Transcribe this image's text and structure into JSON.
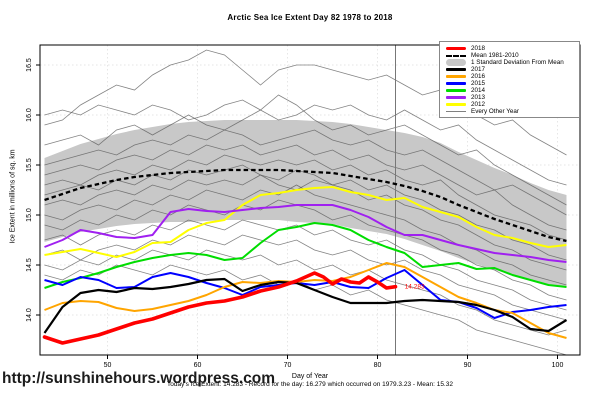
{
  "page": {
    "site_url": "http://sunshinehours.wordpress.com",
    "footer_caption": "Today's Ice Extent: 14.283  - Record for the day: 16.279 which occurred on 1979.3.23  - Mean: 15.32"
  },
  "legend": {
    "items": [
      {
        "label": "2018",
        "swatch": "thick-line",
        "color": "#FF0000"
      },
      {
        "label": "Mean 1981-2010",
        "swatch": "dashed-line",
        "color": "#000000"
      },
      {
        "label": "1 Standard Deviation From Mean",
        "swatch": "band",
        "color": "#C8C8C8"
      },
      {
        "label": "2017",
        "swatch": "line",
        "color": "#000000"
      },
      {
        "label": "2016",
        "swatch": "line",
        "color": "#FFA500"
      },
      {
        "label": "2015",
        "swatch": "line",
        "color": "#0000FF"
      },
      {
        "label": "2014",
        "swatch": "line",
        "color": "#00DD00"
      },
      {
        "label": "2013",
        "swatch": "line",
        "color": "#A020F0"
      },
      {
        "label": "2012",
        "swatch": "line",
        "color": "#FFFF00"
      },
      {
        "label": "Every Other Year",
        "swatch": "thin-line",
        "color": "#808080"
      }
    ]
  },
  "chart_data": {
    "type": "line",
    "title": "Arctic Sea Ice Extent Day 82 1978 to 2018",
    "xlabel": "Day of Year",
    "ylabel": "Ice Extent in millions of sq. km",
    "xlim": [
      42.5,
      102.5
    ],
    "ylim": [
      13.6,
      16.7
    ],
    "x_ticks": [
      50,
      60,
      70,
      80,
      90,
      100
    ],
    "y_ticks": [
      14.0,
      14.5,
      15.0,
      15.5,
      16.0,
      16.5
    ],
    "grid": true,
    "legend_position": "top-right",
    "vline_x": 82,
    "annotation": {
      "text": "14.283",
      "x": 82.8,
      "y": 14.283,
      "color": "#FF0000"
    },
    "days": [
      43,
      45,
      47,
      49,
      51,
      53,
      55,
      57,
      59,
      61,
      63,
      65,
      67,
      69,
      71,
      73,
      75,
      77,
      79,
      81,
      83,
      85,
      87,
      89,
      91,
      93,
      95,
      97,
      99,
      101
    ],
    "band": {
      "label": "1 Standard Deviation From Mean",
      "color": "#C8C8C8",
      "upper": [
        15.57,
        15.64,
        15.71,
        15.76,
        15.81,
        15.85,
        15.88,
        15.91,
        15.93,
        15.94,
        15.95,
        15.95,
        15.95,
        15.95,
        15.95,
        15.94,
        15.93,
        15.91,
        15.88,
        15.85,
        15.82,
        15.78,
        15.72,
        15.63,
        15.55,
        15.47,
        15.4,
        15.32,
        15.25,
        15.2
      ],
      "lower": [
        14.73,
        14.78,
        14.83,
        14.86,
        14.89,
        14.91,
        14.92,
        14.93,
        14.93,
        14.94,
        14.95,
        14.95,
        14.95,
        14.95,
        14.93,
        14.92,
        14.91,
        14.87,
        14.84,
        14.81,
        14.76,
        14.7,
        14.64,
        14.57,
        14.51,
        14.45,
        14.4,
        14.36,
        14.31,
        14.28
      ]
    },
    "mean_line": {
      "label": "Mean 1981-2010",
      "color": "#000000",
      "dashed": true,
      "values": [
        15.15,
        15.21,
        15.27,
        15.31,
        15.35,
        15.38,
        15.4,
        15.42,
        15.43,
        15.44,
        15.45,
        15.45,
        15.45,
        15.45,
        15.44,
        15.43,
        15.42,
        15.39,
        15.36,
        15.33,
        15.29,
        15.24,
        15.18,
        15.1,
        15.03,
        14.96,
        14.9,
        14.84,
        14.78,
        14.74
      ]
    },
    "series": [
      {
        "name": "2012",
        "color": "#FFFF00",
        "width": 2,
        "values": [
          14.6,
          14.63,
          14.66,
          14.62,
          14.58,
          14.63,
          14.72,
          14.73,
          14.85,
          14.92,
          14.95,
          15.1,
          15.2,
          15.22,
          15.25,
          15.27,
          15.28,
          15.23,
          15.2,
          15.15,
          15.17,
          15.08,
          15.03,
          14.98,
          14.88,
          14.8,
          14.77,
          14.72,
          14.68,
          14.7
        ]
      },
      {
        "name": "2013",
        "color": "#A020F0",
        "width": 2,
        "values": [
          14.68,
          14.75,
          14.85,
          14.82,
          14.78,
          14.77,
          14.8,
          15.03,
          15.06,
          15.04,
          15.03,
          15.05,
          15.07,
          15.08,
          15.1,
          15.1,
          15.1,
          15.05,
          14.98,
          14.88,
          14.8,
          14.8,
          14.75,
          14.7,
          14.66,
          14.62,
          14.6,
          14.58,
          14.55,
          14.53
        ]
      },
      {
        "name": "2014",
        "color": "#00DD00",
        "width": 2,
        "values": [
          14.27,
          14.33,
          14.37,
          14.42,
          14.48,
          14.53,
          14.57,
          14.6,
          14.62,
          14.6,
          14.55,
          14.57,
          14.72,
          14.85,
          14.88,
          14.92,
          14.9,
          14.85,
          14.75,
          14.68,
          14.62,
          14.48,
          14.5,
          14.52,
          14.46,
          14.47,
          14.4,
          14.35,
          14.3,
          14.28
        ]
      },
      {
        "name": "2015",
        "color": "#0000FF",
        "width": 2,
        "values": [
          14.35,
          14.3,
          14.38,
          14.35,
          14.27,
          14.28,
          14.38,
          14.42,
          14.38,
          14.32,
          14.27,
          14.2,
          14.28,
          14.3,
          14.32,
          14.3,
          14.33,
          14.28,
          14.27,
          14.37,
          14.45,
          14.3,
          14.15,
          14.13,
          14.07,
          13.97,
          14.03,
          14.05,
          14.08,
          14.1
        ]
      },
      {
        "name": "2016",
        "color": "#FFA500",
        "width": 2,
        "values": [
          14.05,
          14.12,
          14.14,
          14.13,
          14.07,
          14.04,
          14.06,
          14.1,
          14.14,
          14.2,
          14.28,
          14.33,
          14.32,
          14.34,
          14.33,
          14.35,
          14.34,
          14.38,
          14.45,
          14.52,
          14.48,
          14.38,
          14.28,
          14.18,
          14.12,
          14.05,
          14.02,
          13.92,
          13.82,
          13.77
        ]
      },
      {
        "name": "2017",
        "color": "#000000",
        "width": 2.2,
        "values": [
          13.82,
          14.08,
          14.22,
          14.25,
          14.23,
          14.27,
          14.26,
          14.28,
          14.31,
          14.35,
          14.36,
          14.24,
          14.3,
          14.33,
          14.32,
          14.25,
          14.18,
          14.12,
          14.12,
          14.12,
          14.14,
          14.15,
          14.14,
          14.13,
          14.1,
          14.05,
          13.98,
          13.86,
          13.84,
          13.95
        ]
      }
    ],
    "series_2018": {
      "name": "2018",
      "color": "#FF0000",
      "width": 3.6,
      "days": [
        43,
        45,
        47,
        49,
        51,
        53,
        55,
        57,
        59,
        61,
        63,
        65,
        67,
        69,
        71,
        73,
        74,
        75,
        76,
        77,
        78,
        79,
        80,
        81,
        82
      ],
      "values": [
        13.78,
        13.72,
        13.76,
        13.8,
        13.86,
        13.92,
        13.96,
        14.02,
        14.08,
        14.12,
        14.14,
        14.18,
        14.24,
        14.28,
        14.34,
        14.42,
        14.38,
        14.31,
        14.36,
        14.33,
        14.32,
        14.38,
        14.33,
        14.27,
        14.283
      ]
    },
    "background_years": {
      "label": "Every Other Year",
      "color": "#5a5a5a",
      "series": [
        [
          15.9,
          15.95,
          16.1,
          16.2,
          16.3,
          16.25,
          16.4,
          16.5,
          16.55,
          16.65,
          16.6,
          16.45,
          16.3,
          16.45,
          16.5,
          16.5,
          16.45,
          16.4,
          16.35,
          16.4,
          16.3,
          16.2,
          16.25,
          16.1,
          16.0,
          15.9,
          15.95,
          15.8,
          15.7,
          15.6
        ],
        [
          16.0,
          16.05,
          16.0,
          16.1,
          16.05,
          16.0,
          16.1,
          16.05,
          15.95,
          16.0,
          16.1,
          16.15,
          16.05,
          15.95,
          16.0,
          16.1,
          16.05,
          16.1,
          16.0,
          15.95,
          16.05,
          15.95,
          15.85,
          15.9,
          15.75,
          15.65,
          15.55,
          15.45,
          15.35,
          15.3
        ],
        [
          15.7,
          15.75,
          15.8,
          15.7,
          15.85,
          15.9,
          15.8,
          15.9,
          16.0,
          15.9,
          15.85,
          15.95,
          16.05,
          16.2,
          16.1,
          15.95,
          15.85,
          15.9,
          15.8,
          15.85,
          15.9,
          15.8,
          15.7,
          15.6,
          15.65,
          15.5,
          15.4,
          15.3,
          15.2,
          15.1
        ],
        [
          15.5,
          15.55,
          15.6,
          15.65,
          15.6,
          15.7,
          15.75,
          15.7,
          15.8,
          15.75,
          15.85,
          15.8,
          15.7,
          15.75,
          15.8,
          15.85,
          15.75,
          15.7,
          15.75,
          15.65,
          15.6,
          15.65,
          15.55,
          15.45,
          15.35,
          15.25,
          15.3,
          15.2,
          15.1,
          15.0
        ],
        [
          15.4,
          15.45,
          15.5,
          15.45,
          15.55,
          15.6,
          15.55,
          15.65,
          15.6,
          15.7,
          15.65,
          15.7,
          15.6,
          15.65,
          15.7,
          15.6,
          15.65,
          15.55,
          15.6,
          15.5,
          15.45,
          15.5,
          15.4,
          15.3,
          15.2,
          15.25,
          15.1,
          15.0,
          14.9,
          14.85
        ],
        [
          15.3,
          15.35,
          15.3,
          15.4,
          15.45,
          15.4,
          15.5,
          15.45,
          15.55,
          15.5,
          15.6,
          15.55,
          15.5,
          15.55,
          15.5,
          15.55,
          15.45,
          15.5,
          15.4,
          15.45,
          15.35,
          15.3,
          15.35,
          15.2,
          15.1,
          15.0,
          14.95,
          14.9,
          14.8,
          14.75
        ],
        [
          15.2,
          15.25,
          15.3,
          15.25,
          15.35,
          15.3,
          15.4,
          15.35,
          15.45,
          15.4,
          15.45,
          15.5,
          15.4,
          15.35,
          15.45,
          15.4,
          15.3,
          15.35,
          15.25,
          15.3,
          15.2,
          15.15,
          15.05,
          15.0,
          14.9,
          14.85,
          14.75,
          14.7,
          14.6,
          14.55
        ],
        [
          15.1,
          15.15,
          15.1,
          15.2,
          15.25,
          15.2,
          15.3,
          15.25,
          15.35,
          15.3,
          15.35,
          15.3,
          15.4,
          15.3,
          15.25,
          15.35,
          15.3,
          15.25,
          15.15,
          15.2,
          15.1,
          15.05,
          14.95,
          14.9,
          14.8,
          14.7,
          14.65,
          14.55,
          14.5,
          14.45
        ],
        [
          15.0,
          14.95,
          15.05,
          15.1,
          15.05,
          15.15,
          15.1,
          15.2,
          15.15,
          15.25,
          15.2,
          15.15,
          15.25,
          15.2,
          15.3,
          15.2,
          15.15,
          15.1,
          15.05,
          15.0,
          14.95,
          14.85,
          14.8,
          14.7,
          14.65,
          14.55,
          14.5,
          14.4,
          14.35,
          14.3
        ],
        [
          14.9,
          14.85,
          14.95,
          14.9,
          15.0,
          14.95,
          15.05,
          15.0,
          15.1,
          15.05,
          15.0,
          15.1,
          15.05,
          15.15,
          15.1,
          15.05,
          14.95,
          15.0,
          14.9,
          14.85,
          14.8,
          14.75,
          14.65,
          14.6,
          14.5,
          14.45,
          14.35,
          14.3,
          14.2,
          14.15
        ],
        [
          14.75,
          14.8,
          14.7,
          14.8,
          14.85,
          14.8,
          14.9,
          14.85,
          14.95,
          14.9,
          14.85,
          14.95,
          14.9,
          14.85,
          14.9,
          14.8,
          14.85,
          14.75,
          14.7,
          14.75,
          14.65,
          14.6,
          14.5,
          14.45,
          14.35,
          14.3,
          14.25,
          14.15,
          14.1,
          14.05
        ],
        [
          14.6,
          14.65,
          14.55,
          14.65,
          14.7,
          14.65,
          14.75,
          14.7,
          14.8,
          14.75,
          14.7,
          14.8,
          14.75,
          14.7,
          14.75,
          14.65,
          14.6,
          14.65,
          14.55,
          14.5,
          14.55,
          14.45,
          14.4,
          14.3,
          14.25,
          14.2,
          14.1,
          14.05,
          14.0,
          13.95
        ],
        [
          14.5,
          14.45,
          14.55,
          14.5,
          14.6,
          14.55,
          14.65,
          14.6,
          14.55,
          14.65,
          14.6,
          14.55,
          14.6,
          14.5,
          14.55,
          14.45,
          14.5,
          14.4,
          14.45,
          14.35,
          14.3,
          14.25,
          14.2,
          14.1,
          14.05,
          13.95,
          13.9,
          13.85,
          13.8,
          13.85
        ],
        [
          14.4,
          14.35,
          14.45,
          14.4,
          14.5,
          14.45,
          14.4,
          14.5,
          14.45,
          14.4,
          14.45,
          14.35,
          14.4,
          14.3,
          14.35,
          14.25,
          14.3,
          14.2,
          14.25,
          14.15,
          14.1,
          14.05,
          14.0,
          13.95,
          13.85,
          13.8,
          13.75,
          13.7,
          13.65,
          13.6
        ]
      ]
    }
  }
}
